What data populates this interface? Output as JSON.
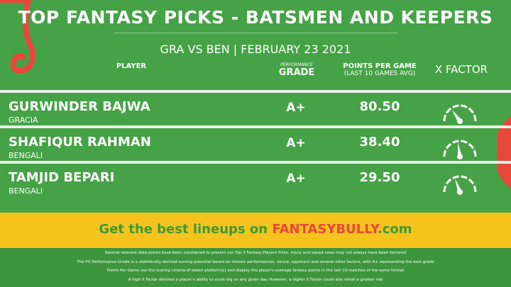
{
  "header": {
    "title": "TOP FANTASY PICKS - BATSMEN AND KEEPERS",
    "match": "GRA VS BEN",
    "date": "FEBRUARY 23 2021"
  },
  "table": {
    "columns": [
      "PLAYER",
      {
        "small": "PERFORMANCE",
        "main": "GRADE"
      },
      {
        "main": "POINTS PER GAME",
        "small": "(LAST 10 GAMES AVG)"
      },
      "X FACTOR"
    ],
    "rows": [
      {
        "name": "GURWINDER BAJWA",
        "team": "GRACIA",
        "grade": "A+",
        "points": "80.50"
      },
      {
        "name": "SHAFIQUR RAHMAN",
        "team": "BENGALI",
        "grade": "A+",
        "points": "38.40"
      },
      {
        "name": "TAMJID BEPARI",
        "team": "BENGALI",
        "grade": "A+",
        "points": "29.50"
      }
    ]
  },
  "banner": {
    "lead": "Get the best lineups on",
    "brand": "FANTASYBULLY",
    ".com": null,
    "domain": ".com"
  },
  "footnotes": [
    "Several relevant data points have been considered to present our Top 3 Fantasy Players Picks. Injury and squad news may not always have been factored",
    "The FG Performance Grade is a statistically derived scoring potential based on historic performances, venue, opponent and several other factors, with A+ representing the best grade",
    "Points Per Game use the scoring criteria of select platform(s) and display the player's average fantasy points in the last 10 matches of the same format",
    "A high X Factor denotes a player's ability to score big on any given day. However, a higher X Factor could also entail a greater risk"
  ]
}
